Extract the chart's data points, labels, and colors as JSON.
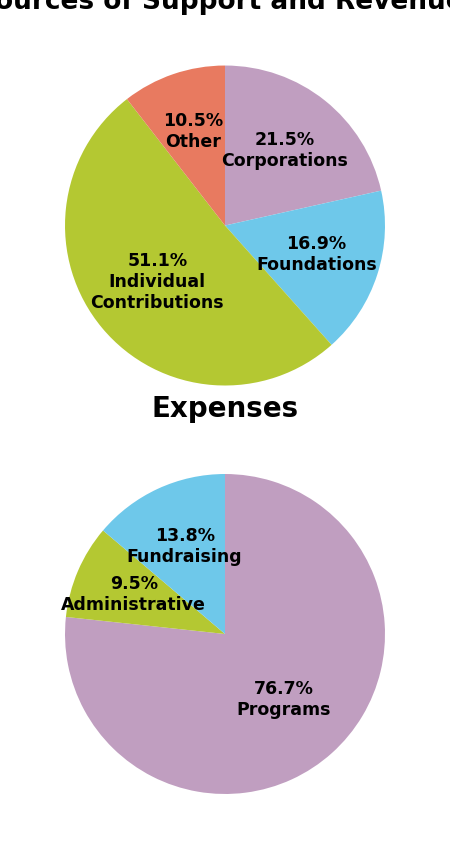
{
  "title1": "Sources of Support and Revenue:",
  "title2": "Expenses",
  "revenue_values": [
    21.5,
    16.9,
    51.1,
    10.5
  ],
  "revenue_colors": [
    "#c09ec0",
    "#6ec8ea",
    "#b4c832",
    "#e87a60"
  ],
  "revenue_label_lines": [
    [
      "21.5%",
      "Corporations"
    ],
    [
      "16.9%",
      "Foundations"
    ],
    [
      "51.1%",
      "Individual",
      "Contributions"
    ],
    [
      "10.5%",
      "Other"
    ]
  ],
  "revenue_label_radii": [
    0.6,
    0.6,
    0.55,
    0.62
  ],
  "revenue_startangle": 90,
  "expense_values": [
    76.7,
    9.5,
    13.8
  ],
  "expense_colors": [
    "#c09ec0",
    "#b4c832",
    "#6ec8ea"
  ],
  "expense_label_lines": [
    [
      "76.7%",
      "Programs"
    ],
    [
      "9.5%",
      "Administrative"
    ],
    [
      "13.8%",
      "Fundraising"
    ]
  ],
  "expense_label_radii": [
    0.55,
    0.62,
    0.6
  ],
  "expense_startangle": 90,
  "background_color": "#ffffff",
  "title1_fontsize": 19,
  "title2_fontsize": 20,
  "label_fontsize": 12.5,
  "label_fontweight": "bold"
}
